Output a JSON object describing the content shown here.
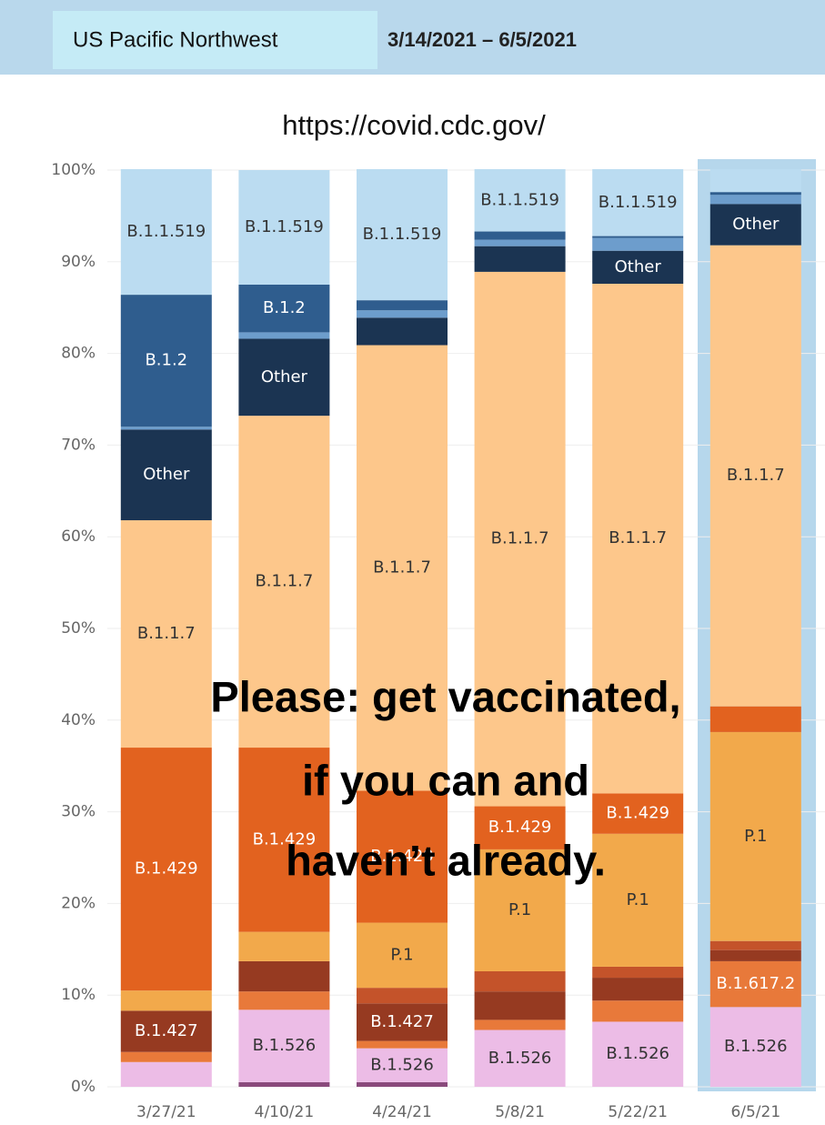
{
  "header": {
    "region": "US Pacific Northwest",
    "range": "3/14/2021 – 6/5/2021"
  },
  "chart_data": {
    "type": "stacked_bar",
    "subtitle": "https://covid.cdc.gov/",
    "annotation": [
      "Please: get vaccinated,",
      "if you can and",
      "haven’t already."
    ],
    "categories": [
      "3/27/21",
      "4/10/21",
      "4/24/21",
      "5/8/21",
      "5/22/21",
      "6/5/21"
    ],
    "ylim": [
      0,
      100
    ],
    "yticks": [
      {
        "value": 0,
        "label": "0%"
      },
      {
        "value": 10,
        "label": "10%"
      },
      {
        "value": 20,
        "label": "20%"
      },
      {
        "value": 30,
        "label": "30%"
      },
      {
        "value": 40,
        "label": "40%"
      },
      {
        "value": 50,
        "label": "50%"
      },
      {
        "value": 60,
        "label": "60%"
      },
      {
        "value": 70,
        "label": "70%"
      },
      {
        "value": 80,
        "label": "80%"
      },
      {
        "value": 90,
        "label": "90%"
      },
      {
        "value": 100,
        "label": "100%"
      }
    ],
    "grid": true,
    "series": [
      {
        "color": "#8a4a7c",
        "values": [
          0,
          0.5,
          0.5,
          0,
          0,
          0
        ]
      },
      {
        "name": "B.1.526",
        "color": "#ecbce6",
        "text_color": "#333333",
        "values": [
          2.7,
          7.9,
          3.7,
          6.2,
          7.1,
          8.7
        ]
      },
      {
        "name": "B.1.617.2",
        "color": "#e8793a",
        "text_color": "#ffffff",
        "values": [
          1.1,
          2.0,
          0.8,
          1.1,
          2.3,
          5.0
        ]
      },
      {
        "name": "B.1.427",
        "color": "#963a21",
        "text_color": "#ffffff",
        "values": [
          4.5,
          3.3,
          4.1,
          3.1,
          2.5,
          1.2
        ]
      },
      {
        "color": "#c4532a",
        "values": [
          0,
          0,
          1.7,
          2.2,
          1.2,
          1.0
        ]
      },
      {
        "name": "P.1",
        "color": "#f2a94b",
        "text_color": "#333333",
        "values": [
          2.2,
          3.2,
          7.1,
          13.3,
          14.5,
          22.8
        ]
      },
      {
        "name": "B.1.429",
        "color": "#e2621f",
        "text_color": "#ffffff",
        "values": [
          26.5,
          20.1,
          14.4,
          4.7,
          4.4,
          2.8
        ]
      },
      {
        "name": "B.1.1.7",
        "color": "#fdc78b",
        "text_color": "#333333",
        "values": [
          24.8,
          36.2,
          48.6,
          58.3,
          55.6,
          50.3
        ]
      },
      {
        "name": "Other",
        "color": "#1b3452",
        "text_color": "#ffffff",
        "values": [
          9.9,
          8.4,
          3.0,
          2.8,
          3.6,
          4.5
        ]
      },
      {
        "color": "#6d9dcc",
        "values": [
          0.3,
          0.7,
          0.8,
          0.7,
          1.4,
          1.0
        ]
      },
      {
        "name": "B.1.2",
        "color": "#2f5d8e",
        "text_color": "#ffffff",
        "values": [
          14.4,
          5.2,
          1.1,
          0.9,
          0.2,
          0.3
        ]
      },
      {
        "name": "B.1.1.519",
        "color": "#bbdcf1",
        "text_color": "#333333",
        "values": [
          13.7,
          12.5,
          14.3,
          6.8,
          7.3,
          2.5
        ]
      }
    ]
  }
}
